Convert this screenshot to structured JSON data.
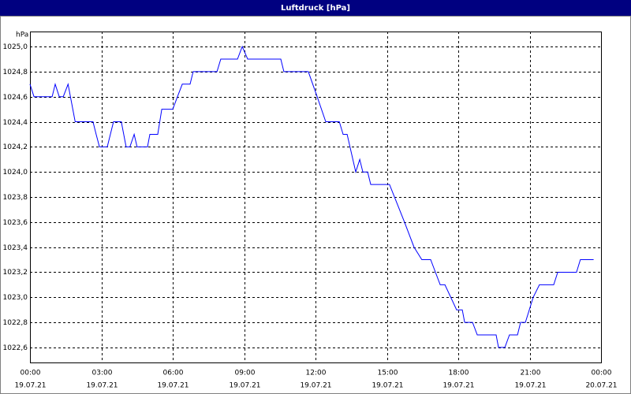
{
  "chart_data": {
    "type": "line",
    "title": "Luftdruck [hPa]",
    "y_unit": "hPa",
    "x": [
      0,
      0.17,
      0.93,
      1.06,
      1.23,
      1.4,
      1.6,
      1.9,
      2.65,
      2.78,
      2.92,
      3.25,
      3.51,
      3.84,
      4.04,
      4.2,
      4.38,
      4.5,
      4.94,
      5.04,
      5.37,
      5.54,
      6.0,
      6.2,
      6.4,
      6.73,
      6.86,
      7.86,
      8.02,
      8.72,
      8.92,
      9.15,
      10.54,
      10.67,
      11.7,
      12.07,
      12.43,
      13.0,
      13.16,
      13.33,
      13.69,
      13.86,
      13.99,
      14.19,
      14.32,
      15.11,
      15.74,
      16.14,
      16.47,
      16.84,
      17.24,
      17.44,
      17.93,
      18.17,
      18.27,
      18.6,
      18.8,
      19.59,
      19.69,
      19.96,
      20.15,
      20.49,
      20.62,
      20.82,
      21.15,
      21.41,
      22.01,
      22.18,
      22.97,
      23.13,
      23.69
    ],
    "series": [
      {
        "name": "Luftdruck",
        "color": "#0000ff",
        "values": [
          1024.7,
          1024.6,
          1024.6,
          1024.7,
          1024.6,
          1024.6,
          1024.7,
          1024.4,
          1024.4,
          1024.3,
          1024.2,
          1024.2,
          1024.4,
          1024.4,
          1024.2,
          1024.2,
          1024.3,
          1024.2,
          1024.2,
          1024.3,
          1024.3,
          1024.5,
          1024.5,
          1024.6,
          1024.7,
          1024.7,
          1024.8,
          1024.8,
          1024.9,
          1024.9,
          1025.0,
          1024.9,
          1024.9,
          1024.8,
          1024.8,
          1024.6,
          1024.4,
          1024.4,
          1024.3,
          1024.3,
          1024.0,
          1024.1,
          1024.0,
          1024.0,
          1023.9,
          1023.9,
          1023.6,
          1023.4,
          1023.3,
          1023.3,
          1023.1,
          1023.1,
          1022.9,
          1022.9,
          1022.8,
          1022.8,
          1022.7,
          1022.7,
          1022.6,
          1022.6,
          1022.7,
          1022.7,
          1022.8,
          1022.8,
          1023.0,
          1023.1,
          1023.1,
          1023.2,
          1023.2,
          1023.3,
          1023.3
        ]
      }
    ],
    "xlim": [
      0,
      24
    ],
    "xticks": [
      {
        "value": 0,
        "label": "00:00"
      },
      {
        "value": 3,
        "label": "03:00"
      },
      {
        "value": 6,
        "label": "06:00"
      },
      {
        "value": 9,
        "label": "09:00"
      },
      {
        "value": 12,
        "label": "12:00"
      },
      {
        "value": 15,
        "label": "15:00"
      },
      {
        "value": 18,
        "label": "18:00"
      },
      {
        "value": 21,
        "label": "21:00"
      },
      {
        "value": 24,
        "label": "00:00"
      }
    ],
    "xtick_dates": [
      "19.07.21",
      "19.07.21",
      "19.07.21",
      "19.07.21",
      "19.07.21",
      "19.07.21",
      "19.07.21",
      "19.07.21",
      "20.07.21"
    ],
    "ylim": [
      1022.48,
      1025.12
    ],
    "yticks": [
      {
        "value": 1022.6,
        "label": "1022,6"
      },
      {
        "value": 1022.8,
        "label": "1022,8"
      },
      {
        "value": 1023.0,
        "label": "1023,0"
      },
      {
        "value": 1023.2,
        "label": "1023,2"
      },
      {
        "value": 1023.4,
        "label": "1023,4"
      },
      {
        "value": 1023.6,
        "label": "1023,6"
      },
      {
        "value": 1023.8,
        "label": "1023,8"
      },
      {
        "value": 1024.0,
        "label": "1024,0"
      },
      {
        "value": 1024.2,
        "label": "1024,2"
      },
      {
        "value": 1024.4,
        "label": "1024,4"
      },
      {
        "value": 1024.6,
        "label": "1024,6"
      },
      {
        "value": 1024.8,
        "label": "1024,8"
      },
      {
        "value": 1025.0,
        "label": "1025,0"
      }
    ],
    "grid": true
  }
}
